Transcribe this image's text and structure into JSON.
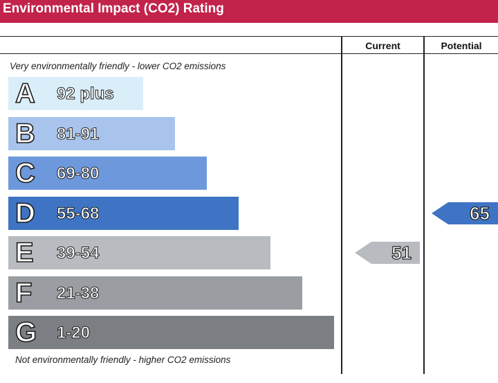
{
  "title": "Environmental Impact (CO2) Rating",
  "columns": {
    "current": "Current",
    "potential": "Potential"
  },
  "notes": {
    "top": "Very environmentally friendly - lower CO2 emissions",
    "bottom": "Not environmentally friendly - higher CO2 emissions"
  },
  "chart_data": {
    "type": "bar",
    "title": "Environmental Impact (CO2) Rating",
    "categories": [
      "A",
      "B",
      "C",
      "D",
      "E",
      "F",
      "G"
    ],
    "bands": [
      {
        "letter": "A",
        "range": "92 plus",
        "color": "#d9eef8"
      },
      {
        "letter": "B",
        "range": "81-91",
        "color": "#a8c4ec"
      },
      {
        "letter": "C",
        "range": "69-80",
        "color": "#6e98dc"
      },
      {
        "letter": "D",
        "range": "55-68",
        "color": "#3e74c3"
      },
      {
        "letter": "E",
        "range": "39-54",
        "color": "#b8bbc0"
      },
      {
        "letter": "F",
        "range": "21-38",
        "color": "#9a9da2"
      },
      {
        "letter": "G",
        "range": "1-20",
        "color": "#7b7e83"
      }
    ],
    "current": {
      "label": "Current",
      "value": 51,
      "band": "E",
      "color": "#b8bbc0"
    },
    "potential": {
      "label": "Potential",
      "value": 65,
      "band": "D",
      "color": "#3e74c3"
    }
  }
}
